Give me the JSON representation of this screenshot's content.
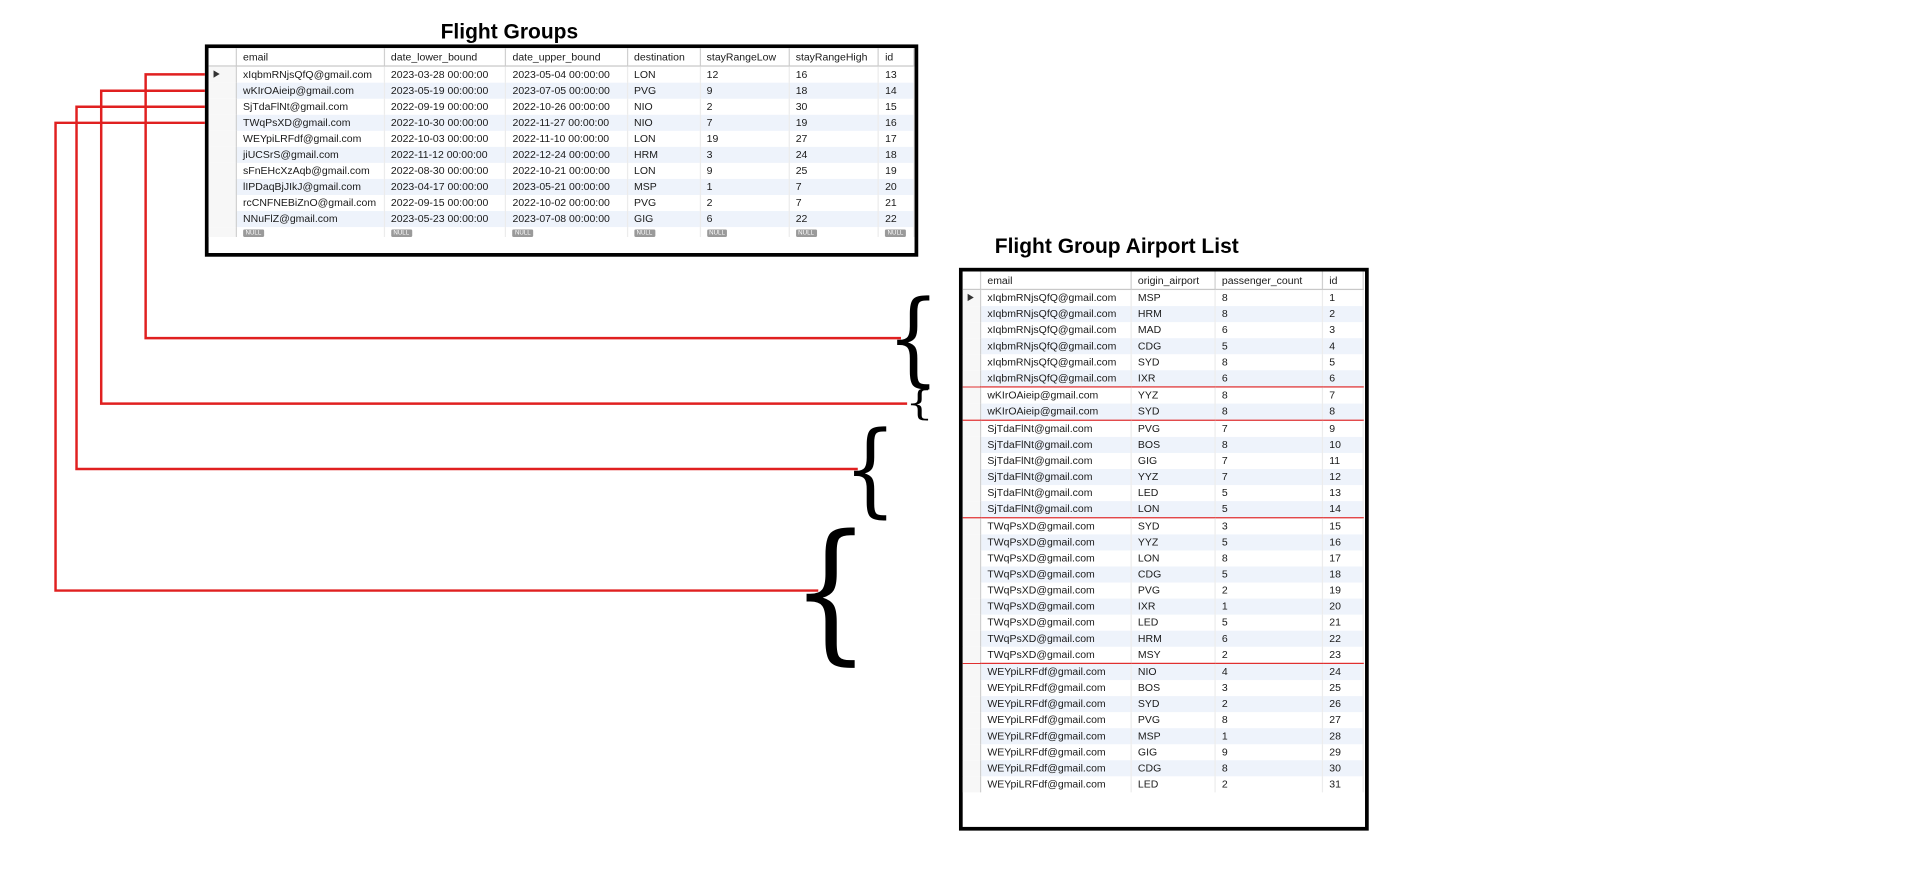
{
  "flight_groups": {
    "title": "Flight Groups",
    "columns": [
      "email",
      "date_lower_bound",
      "date_upper_bound",
      "destination",
      "stayRangeLow",
      "stayRangeHigh",
      "id"
    ],
    "rows": [
      [
        "xIqbmRNjsQfQ@gmail.com",
        "2023-03-28 00:00:00",
        "2023-05-04 00:00:00",
        "LON",
        "12",
        "16",
        "13"
      ],
      [
        "wKIrOAieip@gmail.com",
        "2023-05-19 00:00:00",
        "2023-07-05 00:00:00",
        "PVG",
        "9",
        "18",
        "14"
      ],
      [
        "SjTdaFlNt@gmail.com",
        "2022-09-19 00:00:00",
        "2022-10-26 00:00:00",
        "NIO",
        "2",
        "30",
        "15"
      ],
      [
        "TWqPsXD@gmail.com",
        "2022-10-30 00:00:00",
        "2022-11-27 00:00:00",
        "NIO",
        "7",
        "19",
        "16"
      ],
      [
        "WEYpiLRFdf@gmail.com",
        "2022-10-03 00:00:00",
        "2022-11-10 00:00:00",
        "LON",
        "19",
        "27",
        "17"
      ],
      [
        "jiUCSrS@gmail.com",
        "2022-11-12 00:00:00",
        "2022-12-24 00:00:00",
        "HRM",
        "3",
        "24",
        "18"
      ],
      [
        "sFnEHcXzAqb@gmail.com",
        "2022-08-30 00:00:00",
        "2022-10-21 00:00:00",
        "LON",
        "9",
        "25",
        "19"
      ],
      [
        "lIPDaqBjJIkJ@gmail.com",
        "2023-04-17 00:00:00",
        "2023-05-21 00:00:00",
        "MSP",
        "1",
        "7",
        "20"
      ],
      [
        "rcCNFNEBiZnO@gmail.com",
        "2022-09-15 00:00:00",
        "2022-10-02 00:00:00",
        "PVG",
        "2",
        "7",
        "21"
      ],
      [
        "NNuFlZ@gmail.com",
        "2023-05-23 00:00:00",
        "2023-07-08 00:00:00",
        "GIG",
        "6",
        "22",
        "22"
      ]
    ],
    "null_label": "NULL"
  },
  "airport_list": {
    "title": "Flight Group Airport List",
    "columns": [
      "email",
      "origin_airport",
      "passenger_count",
      "id"
    ],
    "rows": [
      [
        "xIqbmRNjsQfQ@gmail.com",
        "MSP",
        "8",
        "1"
      ],
      [
        "xIqbmRNjsQfQ@gmail.com",
        "HRM",
        "8",
        "2"
      ],
      [
        "xIqbmRNjsQfQ@gmail.com",
        "MAD",
        "6",
        "3"
      ],
      [
        "xIqbmRNjsQfQ@gmail.com",
        "CDG",
        "5",
        "4"
      ],
      [
        "xIqbmRNjsQfQ@gmail.com",
        "SYD",
        "8",
        "5"
      ],
      [
        "xIqbmRNjsQfQ@gmail.com",
        "IXR",
        "6",
        "6"
      ],
      [
        "wKIrOAieip@gmail.com",
        "YYZ",
        "8",
        "7"
      ],
      [
        "wKIrOAieip@gmail.com",
        "SYD",
        "8",
        "8"
      ],
      [
        "SjTdaFlNt@gmail.com",
        "PVG",
        "7",
        "9"
      ],
      [
        "SjTdaFlNt@gmail.com",
        "BOS",
        "8",
        "10"
      ],
      [
        "SjTdaFlNt@gmail.com",
        "GIG",
        "7",
        "11"
      ],
      [
        "SjTdaFlNt@gmail.com",
        "YYZ",
        "7",
        "12"
      ],
      [
        "SjTdaFlNt@gmail.com",
        "LED",
        "5",
        "13"
      ],
      [
        "SjTdaFlNt@gmail.com",
        "LON",
        "5",
        "14"
      ],
      [
        "TWqPsXD@gmail.com",
        "SYD",
        "3",
        "15"
      ],
      [
        "TWqPsXD@gmail.com",
        "YYZ",
        "5",
        "16"
      ],
      [
        "TWqPsXD@gmail.com",
        "LON",
        "8",
        "17"
      ],
      [
        "TWqPsXD@gmail.com",
        "CDG",
        "5",
        "18"
      ],
      [
        "TWqPsXD@gmail.com",
        "PVG",
        "2",
        "19"
      ],
      [
        "TWqPsXD@gmail.com",
        "IXR",
        "1",
        "20"
      ],
      [
        "TWqPsXD@gmail.com",
        "LED",
        "5",
        "21"
      ],
      [
        "TWqPsXD@gmail.com",
        "HRM",
        "6",
        "22"
      ],
      [
        "TWqPsXD@gmail.com",
        "MSY",
        "2",
        "23"
      ],
      [
        "WEYpiLRFdf@gmail.com",
        "NIO",
        "4",
        "24"
      ],
      [
        "WEYpiLRFdf@gmail.com",
        "BOS",
        "3",
        "25"
      ],
      [
        "WEYpiLRFdf@gmail.com",
        "SYD",
        "2",
        "26"
      ],
      [
        "WEYpiLRFdf@gmail.com",
        "PVG",
        "8",
        "27"
      ],
      [
        "WEYpiLRFdf@gmail.com",
        "MSP",
        "1",
        "28"
      ],
      [
        "WEYpiLRFdf@gmail.com",
        "GIG",
        "9",
        "29"
      ],
      [
        "WEYpiLRFdf@gmail.com",
        "CDG",
        "8",
        "30"
      ],
      [
        "WEYpiLRFdf@gmail.com",
        "LED",
        "2",
        "31"
      ]
    ],
    "group_end_rows": [
      5,
      7,
      13,
      22
    ]
  },
  "connectors": {
    "color": "#e02020",
    "brace_glyph": "{",
    "links": [
      {
        "from_row": 0,
        "group_rows": [
          0,
          5
        ]
      },
      {
        "from_row": 1,
        "group_rows": [
          6,
          7
        ]
      },
      {
        "from_row": 2,
        "group_rows": [
          8,
          13
        ]
      },
      {
        "from_row": 3,
        "group_rows": [
          14,
          22
        ]
      }
    ]
  }
}
